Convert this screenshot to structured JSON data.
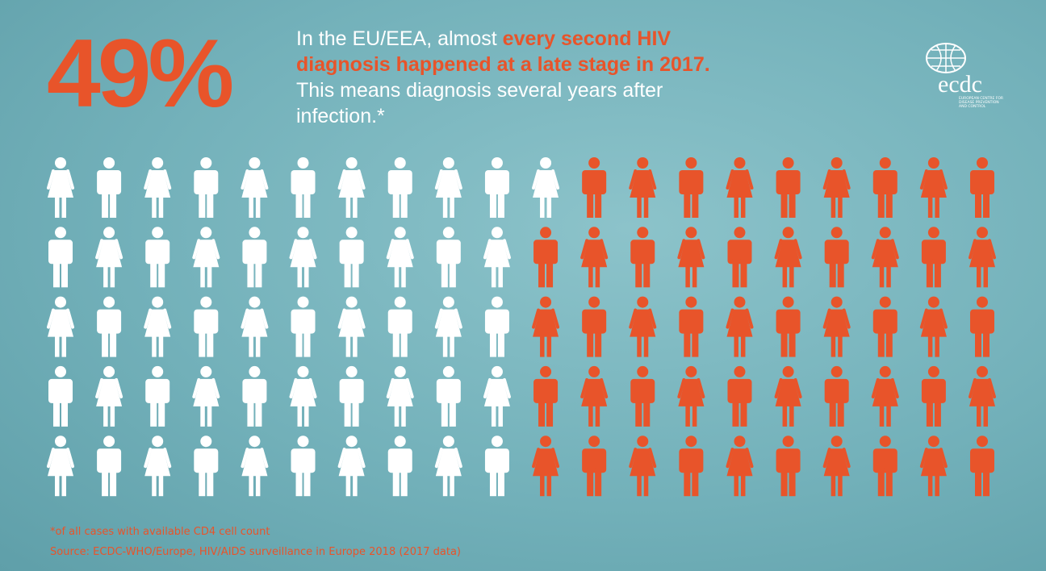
{
  "chart_data": {
    "type": "pictogram",
    "values": [
      49
    ],
    "value_labels": [
      "49%"
    ],
    "ylim": [
      0,
      100
    ],
    "color": "#e8542a",
    "base_color": "#ffffff",
    "text": {
      "intro": "In the EU/EEA, almost",
      "highlight": "every second HIV diagnosis happened at a late stage in 2017.",
      "rest": "This means diagnosis several years after infection.*"
    },
    "footnote": "*of all cases with available CD4 cell count",
    "source": "Source: ECDC-WHO/Europe, HIV/AIDS surveillance in Europe 2018 (2017 data)",
    "logo": {
      "name": "ecdc",
      "subtitle": "EUROPEAN CENTRE FOR DISEASE PREVENTION AND CONTROL"
    }
  }
}
